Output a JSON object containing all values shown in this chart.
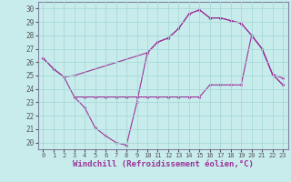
{
  "xlabel": "Windchill (Refroidissement éolien,°C)",
  "xlabel_fontsize": 6.5,
  "bg_color": "#c8ecec",
  "grid_color": "#a8d8d8",
  "line_color": "#993399",
  "ylim": [
    19.5,
    30.5
  ],
  "xlim": [
    -0.5,
    23.5
  ],
  "yticks": [
    20,
    21,
    22,
    23,
    24,
    25,
    26,
    27,
    28,
    29,
    30
  ],
  "xticks": [
    0,
    1,
    2,
    3,
    4,
    5,
    6,
    7,
    8,
    9,
    10,
    11,
    12,
    13,
    14,
    15,
    16,
    17,
    18,
    19,
    20,
    21,
    22,
    23
  ],
  "line1_x": [
    0,
    1,
    2,
    3,
    10,
    11,
    12,
    13,
    14,
    15,
    16,
    17,
    18,
    19,
    20,
    21,
    22,
    23
  ],
  "line1_y": [
    26.3,
    25.5,
    24.9,
    25.0,
    26.7,
    27.5,
    27.8,
    28.5,
    29.6,
    29.9,
    29.3,
    29.3,
    29.1,
    28.9,
    28.0,
    27.0,
    25.1,
    24.3
  ],
  "line2_x": [
    0,
    1,
    2,
    3,
    4,
    5,
    6,
    7,
    8,
    9,
    10,
    11,
    12,
    13,
    14,
    15,
    16,
    17,
    18,
    19,
    20,
    21,
    22,
    23
  ],
  "line2_y": [
    26.3,
    25.5,
    24.9,
    23.4,
    22.6,
    21.1,
    20.5,
    20.0,
    19.8,
    23.0,
    26.7,
    27.5,
    27.8,
    28.5,
    29.6,
    29.9,
    29.3,
    29.3,
    29.1,
    28.9,
    28.0,
    27.0,
    25.1,
    24.8
  ],
  "line3_x": [
    3,
    4,
    5,
    6,
    7,
    8,
    9,
    10,
    11,
    12,
    13,
    14,
    15,
    16,
    17,
    18,
    19,
    20,
    21,
    22,
    23
  ],
  "line3_y": [
    23.4,
    23.4,
    23.4,
    23.4,
    23.4,
    23.4,
    23.4,
    23.4,
    23.4,
    23.4,
    23.4,
    23.4,
    23.4,
    24.3,
    24.3,
    24.3,
    24.3,
    28.0,
    27.0,
    25.1,
    24.3
  ]
}
